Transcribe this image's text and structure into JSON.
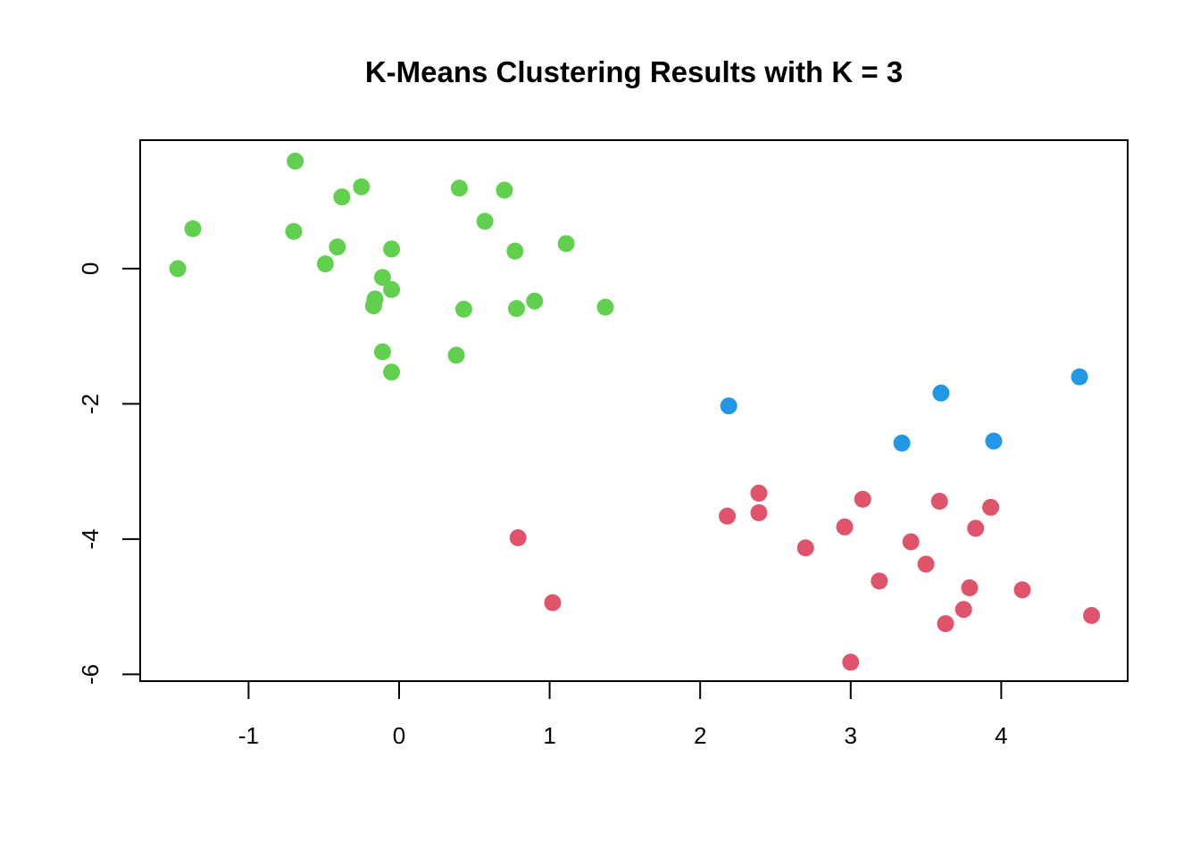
{
  "chart_data": {
    "type": "scatter",
    "title": "K-Means Clustering Results with K = 3",
    "xlabel": "",
    "ylabel": "",
    "xlim": [
      -1.72,
      4.84
    ],
    "ylim": [
      -6.1,
      1.9
    ],
    "x_ticks": [
      -1,
      0,
      1,
      2,
      3,
      4
    ],
    "y_ticks": [
      0,
      -2,
      -4,
      -6
    ],
    "grid": false,
    "legend": "none",
    "series": [
      {
        "color": "#61D04F",
        "points": [
          {
            "x": -1.47,
            "y": 0.0
          },
          {
            "x": -1.37,
            "y": 0.59
          },
          {
            "x": -0.69,
            "y": 1.59
          },
          {
            "x": -0.7,
            "y": 0.55
          },
          {
            "x": -0.49,
            "y": 0.07
          },
          {
            "x": -0.41,
            "y": 0.32
          },
          {
            "x": -0.38,
            "y": 1.06
          },
          {
            "x": -0.25,
            "y": 1.21
          },
          {
            "x": -0.16,
            "y": -0.45
          },
          {
            "x": -0.17,
            "y": -0.55
          },
          {
            "x": -0.11,
            "y": -0.13
          },
          {
            "x": -0.11,
            "y": -1.23
          },
          {
            "x": -0.05,
            "y": 0.29
          },
          {
            "x": -0.05,
            "y": -0.31
          },
          {
            "x": -0.05,
            "y": -1.53
          },
          {
            "x": 0.38,
            "y": -1.28
          },
          {
            "x": 0.4,
            "y": 1.19
          },
          {
            "x": 0.43,
            "y": -0.6
          },
          {
            "x": 0.57,
            "y": 0.7
          },
          {
            "x": 0.7,
            "y": 1.16
          },
          {
            "x": 0.77,
            "y": 0.26
          },
          {
            "x": 0.78,
            "y": -0.59
          },
          {
            "x": 0.9,
            "y": -0.48
          },
          {
            "x": 1.11,
            "y": 0.37
          },
          {
            "x": 1.37,
            "y": -0.57
          }
        ]
      },
      {
        "color": "#2297E6",
        "points": [
          {
            "x": 2.19,
            "y": -2.03
          },
          {
            "x": 3.34,
            "y": -2.58
          },
          {
            "x": 3.6,
            "y": -1.84
          },
          {
            "x": 3.95,
            "y": -2.55
          },
          {
            "x": 4.52,
            "y": -1.6
          }
        ]
      },
      {
        "color": "#DF536B",
        "points": [
          {
            "x": 0.79,
            "y": -3.98
          },
          {
            "x": 1.02,
            "y": -4.94
          },
          {
            "x": 2.18,
            "y": -3.66
          },
          {
            "x": 2.39,
            "y": -3.32
          },
          {
            "x": 2.39,
            "y": -3.61
          },
          {
            "x": 2.7,
            "y": -4.13
          },
          {
            "x": 2.96,
            "y": -3.82
          },
          {
            "x": 3.0,
            "y": -5.82
          },
          {
            "x": 3.08,
            "y": -3.41
          },
          {
            "x": 3.19,
            "y": -4.62
          },
          {
            "x": 3.4,
            "y": -4.04
          },
          {
            "x": 3.5,
            "y": -4.37
          },
          {
            "x": 3.59,
            "y": -3.44
          },
          {
            "x": 3.63,
            "y": -5.25
          },
          {
            "x": 3.75,
            "y": -5.04
          },
          {
            "x": 3.79,
            "y": -4.72
          },
          {
            "x": 3.83,
            "y": -3.84
          },
          {
            "x": 3.93,
            "y": -3.53
          },
          {
            "x": 4.14,
            "y": -4.75
          },
          {
            "x": 4.6,
            "y": -5.13
          }
        ]
      }
    ]
  }
}
